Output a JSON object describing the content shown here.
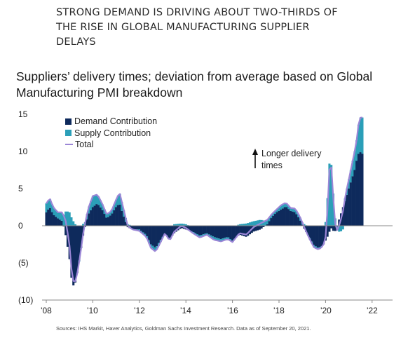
{
  "headline": "STRONG DEMAND IS DRIVING ABOUT TWO-THIRDS OF THE RISE IN GLOBAL MANUFACTURING SUPPLIER DELAYS",
  "subtitle": "Suppliers’ delivery times; deviation from average based on Global Manufacturing PMI breakdown",
  "annotation": "Longer delivery times",
  "source": "Sources: IHS Markit, Haver Analytics, Goldman Sachs Investment Research. Data as of September 20, 2021.",
  "colors": {
    "demand": "#0e2a5c",
    "supply": "#2b9fb8",
    "total": "#9b86d6"
  },
  "chart_data": {
    "type": "bar",
    "title": "Suppliers’ delivery times; deviation from average based on Global Manufacturing PMI breakdown",
    "ylim": [
      -10,
      15
    ],
    "yticks": [
      15,
      10,
      5,
      0,
      -5,
      -10
    ],
    "ytick_labels": [
      "15",
      "10",
      "5",
      "0",
      "(5)",
      "(10)"
    ],
    "xlim": [
      2008,
      2022.5
    ],
    "xticks": [
      2008,
      2010,
      2012,
      2014,
      2016,
      2018,
      2020,
      2022
    ],
    "xtick_labels": [
      "'08",
      "'10",
      "'12",
      "'14",
      "'16",
      "'18",
      "'20",
      "'22"
    ],
    "legend": [
      "Demand Contribution",
      "Supply Contribution",
      "Total"
    ],
    "legend_position": "top-left",
    "grid": false,
    "knots": [
      [
        2008.0,
        1.8,
        1.2
      ],
      [
        2008.15,
        2.5,
        1.2
      ],
      [
        2008.3,
        1.5,
        1.0
      ],
      [
        2008.5,
        1.0,
        0.8
      ],
      [
        2008.7,
        0.6,
        1.2
      ],
      [
        2008.85,
        -1.5,
        2.0
      ],
      [
        2009.0,
        -4.5,
        1.8
      ],
      [
        2009.1,
        -7.5,
        1.0
      ],
      [
        2009.2,
        -8.3,
        0.4
      ],
      [
        2009.3,
        -7.0,
        0.0
      ],
      [
        2009.45,
        -4.0,
        -0.2
      ],
      [
        2009.6,
        -1.0,
        0.3
      ],
      [
        2009.8,
        1.5,
        0.8
      ],
      [
        2010.0,
        2.5,
        1.5
      ],
      [
        2010.2,
        3.0,
        1.2
      ],
      [
        2010.4,
        2.2,
        0.8
      ],
      [
        2010.6,
        1.0,
        0.5
      ],
      [
        2010.8,
        1.5,
        0.5
      ],
      [
        2011.0,
        2.5,
        1.0
      ],
      [
        2011.15,
        3.0,
        1.5
      ],
      [
        2011.3,
        1.5,
        1.0
      ],
      [
        2011.5,
        -0.2,
        0.2
      ],
      [
        2011.7,
        -0.5,
        0.0
      ],
      [
        2012.0,
        -0.5,
        -0.2
      ],
      [
        2012.3,
        -1.2,
        -0.3
      ],
      [
        2012.5,
        -2.5,
        -0.5
      ],
      [
        2012.7,
        -3.0,
        -0.5
      ],
      [
        2012.9,
        -2.0,
        -0.3
      ],
      [
        2013.1,
        -1.0,
        0.0
      ],
      [
        2013.3,
        -1.8,
        -0.2
      ],
      [
        2013.5,
        -1.0,
        0.2
      ],
      [
        2013.8,
        -0.3,
        0.3
      ],
      [
        2014.0,
        -0.5,
        0.2
      ],
      [
        2014.3,
        -0.8,
        -0.2
      ],
      [
        2014.6,
        -1.3,
        -0.3
      ],
      [
        2014.9,
        -1.0,
        -0.2
      ],
      [
        2015.2,
        -1.5,
        -0.4
      ],
      [
        2015.5,
        -1.8,
        -0.3
      ],
      [
        2015.8,
        -1.5,
        -0.3
      ],
      [
        2016.0,
        -2.0,
        -0.2
      ],
      [
        2016.3,
        -1.2,
        0.2
      ],
      [
        2016.6,
        -1.5,
        0.3
      ],
      [
        2016.9,
        -0.8,
        0.6
      ],
      [
        2017.2,
        -0.5,
        0.8
      ],
      [
        2017.5,
        0.2,
        0.6
      ],
      [
        2017.7,
        1.2,
        0.4
      ],
      [
        2017.9,
        1.8,
        0.4
      ],
      [
        2018.1,
        2.2,
        0.6
      ],
      [
        2018.3,
        2.6,
        0.5
      ],
      [
        2018.5,
        2.0,
        0.4
      ],
      [
        2018.7,
        1.8,
        0.5
      ],
      [
        2018.9,
        0.8,
        0.4
      ],
      [
        2019.1,
        -0.5,
        0.2
      ],
      [
        2019.3,
        -1.5,
        -0.2
      ],
      [
        2019.5,
        -2.6,
        -0.3
      ],
      [
        2019.7,
        -3.0,
        -0.2
      ],
      [
        2019.9,
        -2.6,
        -0.1
      ],
      [
        2020.0,
        -2.0,
        0.5
      ],
      [
        2020.08,
        -1.5,
        3.5
      ],
      [
        2020.15,
        -1.0,
        8.0
      ],
      [
        2020.22,
        -0.2,
        9.5
      ],
      [
        2020.3,
        -0.6,
        6.0
      ],
      [
        2020.38,
        -0.8,
        2.0
      ],
      [
        2020.46,
        -0.6,
        -0.2
      ],
      [
        2020.55,
        0.5,
        -0.8
      ],
      [
        2020.65,
        1.5,
        -0.8
      ],
      [
        2020.75,
        2.5,
        -0.5
      ],
      [
        2020.85,
        3.5,
        0.5
      ],
      [
        2020.95,
        4.5,
        1.0
      ],
      [
        2021.05,
        5.5,
        1.5
      ],
      [
        2021.15,
        6.5,
        2.0
      ],
      [
        2021.25,
        7.5,
        2.5
      ],
      [
        2021.35,
        9.0,
        2.8
      ],
      [
        2021.45,
        10.0,
        4.5
      ],
      [
        2021.55,
        9.8,
        4.8
      ],
      [
        2021.65,
        9.5,
        5.0
      ]
    ]
  }
}
